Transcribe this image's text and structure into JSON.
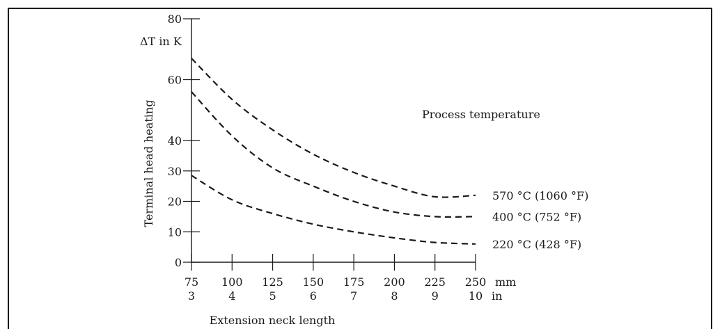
{
  "chart_data": {
    "type": "line",
    "ylabel": "Terminal head heating",
    "yunit": "ΔT in K",
    "xlabel": "Extension neck length",
    "xunit_mm": "mm",
    "xunit_in": "in",
    "legend_title": "Process temperature",
    "x": [
      75,
      100,
      125,
      150,
      175,
      200,
      225,
      250
    ],
    "x_ticks_mm": [
      "75",
      "100",
      "125",
      "150",
      "175",
      "200",
      "225",
      "250"
    ],
    "x_ticks_in": [
      "3",
      "4",
      "5",
      "6",
      "7",
      "8",
      "9",
      "10"
    ],
    "y_ticks": [
      "0",
      "10",
      "20",
      "30",
      "40",
      "60",
      "80"
    ],
    "xlim": [
      75,
      250
    ],
    "ylim": [
      0,
      80
    ],
    "grid": false,
    "series": [
      {
        "name": "570 °C (1060 °F)",
        "x": [
          75,
          100,
          125,
          150,
          175,
          200,
          225,
          250
        ],
        "values": [
          67,
          53.5,
          43.5,
          35.5,
          29.5,
          25,
          21.5,
          22
        ]
      },
      {
        "name": "400 °C (752 °F)",
        "x": [
          75,
          100,
          125,
          150,
          175,
          200,
          225,
          250
        ],
        "values": [
          56,
          41.5,
          31,
          25,
          20,
          16.5,
          15,
          15
        ]
      },
      {
        "name": "220 °C (428 °F)",
        "x": [
          75,
          100,
          125,
          150,
          175,
          200,
          225,
          250
        ],
        "values": [
          28.5,
          20.5,
          16,
          12.5,
          10,
          8,
          6.5,
          6
        ]
      }
    ]
  }
}
